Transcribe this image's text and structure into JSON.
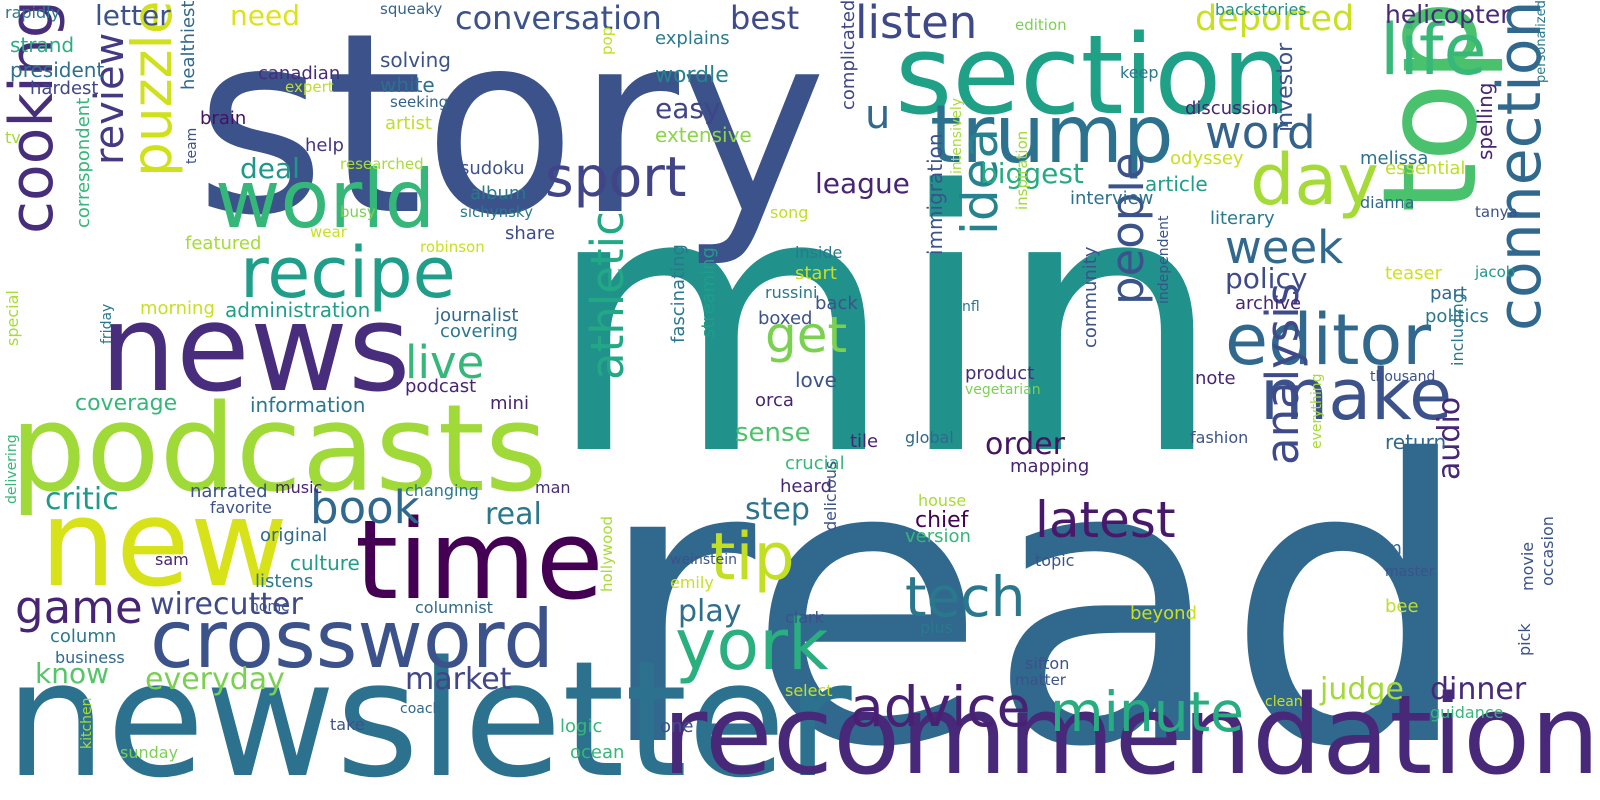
{
  "words": [
    {
      "text": "min",
      "color": "#21918c"
    },
    {
      "text": "read",
      "color": "#31688e"
    },
    {
      "text": "story",
      "color": "#3b528b"
    },
    {
      "text": "newsletter",
      "color": "#2c728e"
    },
    {
      "text": "podcasts",
      "color": "#a0da39"
    },
    {
      "text": "news",
      "color": "#472d7b"
    },
    {
      "text": "section",
      "color": "#1fa187"
    },
    {
      "text": "recommendation",
      "color": "#482878"
    },
    {
      "text": "top",
      "color": "#4ac16d"
    },
    {
      "text": "new",
      "color": "#d8e219"
    },
    {
      "text": "time",
      "color": "#440154"
    },
    {
      "text": "trump",
      "color": "#2c728e"
    },
    {
      "text": "crossword",
      "color": "#3b528b"
    },
    {
      "text": "connection",
      "color": "#31688e"
    },
    {
      "text": "world",
      "color": "#35b779"
    },
    {
      "text": "recipe",
      "color": "#1f9e89"
    },
    {
      "text": "cooking",
      "color": "#472d7b"
    },
    {
      "text": "puzzle",
      "color": "#d0e11c"
    },
    {
      "text": "editor",
      "color": "#31688e"
    },
    {
      "text": "make",
      "color": "#3b528b"
    },
    {
      "text": "life",
      "color": "#37b878"
    },
    {
      "text": "day",
      "color": "#a5db36"
    },
    {
      "text": "york",
      "color": "#2ab07f"
    },
    {
      "text": "tip",
      "color": "#c2df23"
    },
    {
      "text": "idea",
      "color": "#26828e"
    },
    {
      "text": "analysis",
      "color": "#3e4a89"
    },
    {
      "text": "athletic",
      "color": "#22a884"
    },
    {
      "text": "sport",
      "color": "#414487"
    },
    {
      "text": "listen",
      "color": "#3e4989"
    },
    {
      "text": "word",
      "color": "#33638d"
    },
    {
      "text": "people",
      "color": "#3b528b"
    },
    {
      "text": "week",
      "color": "#31688e"
    },
    {
      "text": "advice",
      "color": "#482173"
    },
    {
      "text": "minute",
      "color": "#27ad81"
    },
    {
      "text": "latest",
      "color": "#48186a"
    },
    {
      "text": "tech",
      "color": "#2a788e"
    },
    {
      "text": "review",
      "color": "#443a83"
    },
    {
      "text": "book",
      "color": "#31688e"
    },
    {
      "text": "live",
      "color": "#35b779"
    },
    {
      "text": "get",
      "color": "#7ad151"
    },
    {
      "text": "u",
      "color": "#31688e"
    },
    {
      "text": "game",
      "color": "#482475"
    },
    {
      "text": "deported",
      "color": "#c8e020"
    },
    {
      "text": "conversation",
      "color": "#3b528b"
    },
    {
      "text": "best",
      "color": "#3e4a89"
    },
    {
      "text": "letter",
      "color": "#3b528b"
    },
    {
      "text": "need",
      "color": "#dde318"
    },
    {
      "text": "helicopter",
      "color": "#482878"
    },
    {
      "text": "wirecutter",
      "color": "#3e4a89"
    },
    {
      "text": "everyday",
      "color": "#7ad151"
    },
    {
      "text": "market",
      "color": "#404688"
    },
    {
      "text": "judge",
      "color": "#a2da37"
    },
    {
      "text": "dinner",
      "color": "#472a7a"
    },
    {
      "text": "play",
      "color": "#2e6e8e"
    },
    {
      "text": "step",
      "color": "#2c738e"
    },
    {
      "text": "real",
      "color": "#2a788e"
    },
    {
      "text": "critic",
      "color": "#1f9a8a"
    },
    {
      "text": "know",
      "color": "#54c568"
    },
    {
      "text": "order",
      "color": "#471365"
    },
    {
      "text": "policy",
      "color": "#3e4a89"
    },
    {
      "text": "league",
      "color": "#482475"
    },
    {
      "text": "biggest",
      "color": "#25ab82"
    },
    {
      "text": "deal",
      "color": "#1f988b"
    },
    {
      "text": "sense",
      "color": "#4ec36b"
    },
    {
      "text": "audio",
      "color": "#482677"
    },
    {
      "text": "easy",
      "color": "#414487"
    },
    {
      "text": "wordle",
      "color": "#25838e"
    },
    {
      "text": "extensive",
      "color": "#8bd646"
    },
    {
      "text": "explains",
      "color": "#297b8e"
    },
    {
      "text": "solving",
      "color": "#3b528b"
    },
    {
      "text": "white",
      "color": "#2d708e"
    },
    {
      "text": "president",
      "color": "#2e6f8e"
    },
    {
      "text": "strand",
      "color": "#29af7f"
    },
    {
      "text": "hardest",
      "color": "#404688"
    },
    {
      "text": "rapidly",
      "color": "#2a788e"
    },
    {
      "text": "canadian",
      "color": "#472c7a"
    },
    {
      "text": "expert",
      "color": "#bddf26"
    },
    {
      "text": "brain",
      "color": "#471063"
    },
    {
      "text": "artist",
      "color": "#c0df25"
    },
    {
      "text": "seeking",
      "color": "#33638d"
    },
    {
      "text": "squeaky",
      "color": "#33638d"
    },
    {
      "text": "pop",
      "color": "#c0df25"
    },
    {
      "text": "backstories",
      "color": "#21918c"
    },
    {
      "text": "edition",
      "color": "#7ad151"
    },
    {
      "text": "keep",
      "color": "#2a788e"
    },
    {
      "text": "personalized",
      "color": "#2a788e"
    },
    {
      "text": "discussion",
      "color": "#482475"
    },
    {
      "text": "investor",
      "color": "#3b528b"
    },
    {
      "text": "melissa",
      "color": "#2c728e"
    },
    {
      "text": "odyssey",
      "color": "#c8e020"
    },
    {
      "text": "essential",
      "color": "#bddf26"
    },
    {
      "text": "spelling",
      "color": "#482475"
    },
    {
      "text": "article",
      "color": "#1f9e89"
    },
    {
      "text": "interview",
      "color": "#2d708e"
    },
    {
      "text": "dianna",
      "color": "#31688e"
    },
    {
      "text": "tanya",
      "color": "#3b528b"
    },
    {
      "text": "literary",
      "color": "#2a788e"
    },
    {
      "text": "teaser",
      "color": "#d0e11c"
    },
    {
      "text": "part",
      "color": "#31688e"
    },
    {
      "text": "jacob",
      "color": "#1f988b"
    },
    {
      "text": "archive",
      "color": "#482677"
    },
    {
      "text": "politics",
      "color": "#2a788e"
    },
    {
      "text": "help",
      "color": "#463480"
    },
    {
      "text": "researched",
      "color": "#a8db34"
    },
    {
      "text": "sudoku",
      "color": "#3b528b"
    },
    {
      "text": "complicated",
      "color": "#404688"
    },
    {
      "text": "healthiest",
      "color": "#31688e"
    },
    {
      "text": "tv",
      "color": "#a5db36"
    },
    {
      "text": "team",
      "color": "#3b528b"
    },
    {
      "text": "featured",
      "color": "#a5db36"
    },
    {
      "text": "busy",
      "color": "#7ad151"
    },
    {
      "text": "album",
      "color": "#2a788e"
    },
    {
      "text": "sichynsky",
      "color": "#2a788e"
    },
    {
      "text": "song",
      "color": "#c0df25"
    },
    {
      "text": "share",
      "color": "#3e4a89"
    },
    {
      "text": "wear",
      "color": "#c8e020"
    },
    {
      "text": "robinson",
      "color": "#c8e020"
    },
    {
      "text": "intensively",
      "color": "#a8db34"
    },
    {
      "text": "inspiration",
      "color": "#a0da39"
    },
    {
      "text": "immigration",
      "color": "#3b528b"
    },
    {
      "text": "inside",
      "color": "#2a788e"
    },
    {
      "text": "start",
      "color": "#c8e020"
    },
    {
      "text": "russini",
      "color": "#2a788e"
    },
    {
      "text": "back",
      "color": "#3b528b"
    },
    {
      "text": "correspondent",
      "color": "#35b779"
    },
    {
      "text": "morning",
      "color": "#c8e020"
    },
    {
      "text": "administration",
      "color": "#1f9e89"
    },
    {
      "text": "journalist",
      "color": "#31688e"
    },
    {
      "text": "covering",
      "color": "#2a788e"
    },
    {
      "text": "boxed",
      "color": "#3b528b"
    },
    {
      "text": "streaming",
      "color": "#1f9e89"
    },
    {
      "text": "nfl",
      "color": "#2a788e"
    },
    {
      "text": "community",
      "color": "#3b528b"
    },
    {
      "text": "independent",
      "color": "#3b528b"
    },
    {
      "text": "special",
      "color": "#a8db34"
    },
    {
      "text": "friday",
      "color": "#2a788e"
    },
    {
      "text": "coverage",
      "color": "#35b779"
    },
    {
      "text": "podcast",
      "color": "#482475"
    },
    {
      "text": "information",
      "color": "#2a788e"
    },
    {
      "text": "mini",
      "color": "#482475"
    },
    {
      "text": "fascinating",
      "color": "#2a788e"
    },
    {
      "text": "love",
      "color": "#3b528b"
    },
    {
      "text": "orca",
      "color": "#482475"
    },
    {
      "text": "product",
      "color": "#472c7a"
    },
    {
      "text": "vegetarian",
      "color": "#7ad151"
    },
    {
      "text": "note",
      "color": "#482475"
    },
    {
      "text": "thousand",
      "color": "#3b528b"
    },
    {
      "text": "including",
      "color": "#2a788e"
    },
    {
      "text": "tile",
      "color": "#482475"
    },
    {
      "text": "global",
      "color": "#31688e"
    },
    {
      "text": "fashion",
      "color": "#3b528b"
    },
    {
      "text": "return",
      "color": "#31688e"
    },
    {
      "text": "everything",
      "color": "#a8db34"
    },
    {
      "text": "crucial",
      "color": "#35b779"
    },
    {
      "text": "mapping",
      "color": "#482475"
    },
    {
      "text": "heard",
      "color": "#482475"
    },
    {
      "text": "narrated",
      "color": "#3b528b"
    },
    {
      "text": "music",
      "color": "#482475"
    },
    {
      "text": "changing",
      "color": "#2a788e"
    },
    {
      "text": "man",
      "color": "#472c7a"
    },
    {
      "text": "favorite",
      "color": "#3b528b"
    },
    {
      "text": "house",
      "color": "#a8db34"
    },
    {
      "text": "chief",
      "color": "#440154"
    },
    {
      "text": "version",
      "color": "#35b779"
    },
    {
      "text": "original",
      "color": "#31688e"
    },
    {
      "text": "culture",
      "color": "#1f9e89"
    },
    {
      "text": "sam",
      "color": "#482475"
    },
    {
      "text": "listens",
      "color": "#2a788e"
    },
    {
      "text": "home",
      "color": "#3b528b"
    },
    {
      "text": "columnist",
      "color": "#31688e"
    },
    {
      "text": "delivering",
      "color": "#35b779"
    },
    {
      "text": "weinstein",
      "color": "#3b528b"
    },
    {
      "text": "emily",
      "color": "#c8e020"
    },
    {
      "text": "delicious",
      "color": "#3b528b"
    },
    {
      "text": "hollywood",
      "color": "#a8db34"
    },
    {
      "text": "clark",
      "color": "#3b528b"
    },
    {
      "text": "column",
      "color": "#2a788e"
    },
    {
      "text": "business",
      "color": "#31688e"
    },
    {
      "text": "topic",
      "color": "#3b528b"
    },
    {
      "text": "got",
      "color": "#31688e"
    },
    {
      "text": "beyond",
      "color": "#c8e020"
    },
    {
      "text": "smart",
      "color": "#31688e"
    },
    {
      "text": "master",
      "color": "#3b528b"
    },
    {
      "text": "bee",
      "color": "#bddf26"
    },
    {
      "text": "movie",
      "color": "#3b528b"
    },
    {
      "text": "occasion",
      "color": "#3b528b"
    },
    {
      "text": "pick",
      "color": "#3b528b"
    },
    {
      "text": "plus",
      "color": "#2a788e"
    },
    {
      "text": "sifton",
      "color": "#3b528b"
    },
    {
      "text": "matter",
      "color": "#3b528b"
    },
    {
      "text": "select",
      "color": "#c8e020"
    },
    {
      "text": "take",
      "color": "#3b528b"
    },
    {
      "text": "coach",
      "color": "#31688e"
    },
    {
      "text": "kitchen",
      "color": "#a8db34"
    },
    {
      "text": "sunday",
      "color": "#7ad151"
    },
    {
      "text": "logic",
      "color": "#35b779"
    },
    {
      "text": "ocean",
      "color": "#35b779"
    },
    {
      "text": "one",
      "color": "#3b528b"
    },
    {
      "text": "clean",
      "color": "#c8e020"
    },
    {
      "text": "guidance",
      "color": "#35b779"
    }
  ]
}
